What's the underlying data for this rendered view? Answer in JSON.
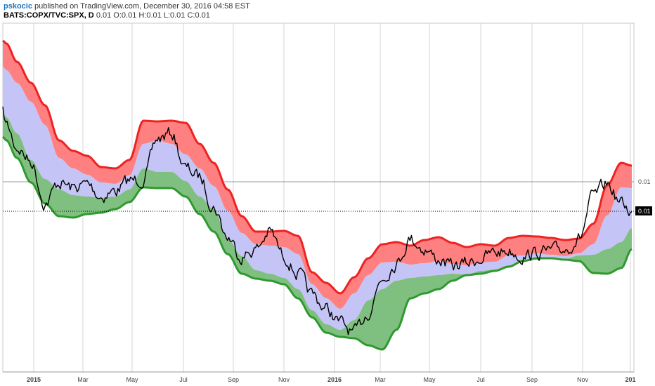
{
  "header": {
    "user": "pskocic",
    "published_text": "published on TradingView.com, December 30, 2016 04:58 EST",
    "symbol": "BATS:COPX/TVC:SPX, D",
    "ohlc": "0.01 O:0.01 H:0.01 L:0.01 C:0.01"
  },
  "chart_data": {
    "type": "area",
    "x_axis": {
      "tick_labels": [
        "2015",
        "Mar",
        "May",
        "Jul",
        "Sep",
        "Nov",
        "2016",
        "Mar",
        "May",
        "Jul",
        "Sep",
        "Nov",
        "201"
      ]
    },
    "y_axis": {
      "tick_labels": [
        "0.01"
      ],
      "last_price_label": "0.01",
      "position": "right"
    },
    "grid": true,
    "colors": {
      "upper_band": "#ff8080",
      "middle_band": "#c4c4f6",
      "lower_band": "#7fbf7f",
      "upper_edge": "#ee2222",
      "lower_edge": "#2e9a2e",
      "price": "#000000"
    },
    "anchors_x": [
      0,
      5,
      20,
      40,
      60,
      80,
      100,
      120,
      140,
      160,
      180,
      200,
      220,
      240,
      260,
      280,
      300,
      320,
      340,
      360,
      380,
      400,
      420,
      440,
      460,
      480,
      500,
      520,
      540,
      560,
      580,
      600,
      620,
      640,
      660,
      680,
      700,
      720,
      740,
      760,
      780,
      800,
      820,
      840,
      860,
      880,
      895
    ],
    "series": [
      {
        "id": "upper-edge",
        "values": [
          58,
          62,
          88,
          118,
          150,
          200,
          215,
          222,
          238,
          240,
          228,
          172,
          173,
          172,
          175,
          205,
          232,
          270,
          308,
          330,
          330,
          329,
          336,
          388,
          403,
          418,
          395,
          368,
          348,
          345,
          350,
          342,
          338,
          346,
          352,
          348,
          350,
          339,
          336,
          337,
          339,
          342,
          340,
          319,
          264,
          232,
          236
        ]
      },
      {
        "id": "upper-mid",
        "values": [
          95,
          100,
          118,
          145,
          178,
          225,
          240,
          249,
          260,
          262,
          250,
          205,
          200,
          205,
          220,
          240,
          265,
          300,
          332,
          348,
          350,
          352,
          362,
          405,
          425,
          440,
          418,
          392,
          374,
          373,
          377,
          375,
          372,
          376,
          378,
          374,
          373,
          364,
          364,
          361,
          363,
          365,
          361,
          348,
          307,
          267,
          268
        ]
      },
      {
        "id": "lower-mid",
        "values": [
          160,
          167,
          190,
          228,
          255,
          270,
          278,
          280,
          282,
          280,
          270,
          240,
          245,
          245,
          258,
          280,
          298,
          340,
          365,
          385,
          390,
          396,
          412,
          442,
          462,
          470,
          456,
          428,
          412,
          400,
          396,
          394,
          392,
          390,
          391,
          386,
          384,
          378,
          370,
          370,
          368,
          369,
          364,
          363,
          355,
          345,
          325
        ]
      },
      {
        "id": "lower-edge",
        "values": [
          195,
          200,
          225,
          260,
          290,
          308,
          310,
          305,
          303,
          298,
          288,
          267,
          268,
          268,
          280,
          305,
          330,
          362,
          390,
          397,
          400,
          405,
          425,
          452,
          474,
          480,
          482,
          492,
          498,
          470,
          425,
          418,
          412,
          400,
          392,
          390,
          386,
          380,
          372,
          368,
          368,
          370,
          372,
          389,
          390,
          382,
          355
        ]
      },
      {
        "id": "price",
        "values": [
          160,
          178,
          210,
          230,
          290,
          260,
          268,
          262,
          280,
          272,
          258,
          255,
          198,
          190,
          240,
          252,
          295,
          338,
          365,
          355,
          330,
          365,
          390,
          420,
          440,
          460,
          475,
          445,
          395,
          375,
          340,
          355,
          370,
          380,
          375,
          368,
          360,
          357,
          365,
          360,
          358,
          355,
          340,
          280,
          262,
          290,
          302
        ]
      }
    ]
  }
}
